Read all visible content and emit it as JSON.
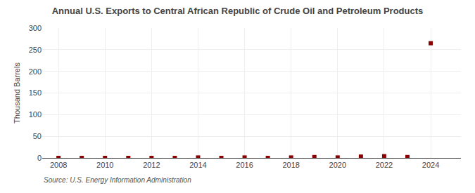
{
  "chart_data": {
    "type": "scatter",
    "title": "Annual U.S. Exports to Central African Republic of Crude Oil and Petroleum Products",
    "ylabel": "Thousand Barrels",
    "source": "Source: U.S. Energy Information Administration",
    "x": [
      2008,
      2009,
      2010,
      2011,
      2012,
      2013,
      2014,
      2015,
      2016,
      2017,
      2018,
      2019,
      2020,
      2021,
      2022,
      2023,
      2024
    ],
    "values": [
      0,
      0,
      0,
      0,
      0,
      0,
      1,
      0,
      1,
      0,
      1,
      2,
      1,
      3,
      4,
      2,
      265
    ],
    "color": "#8b0000",
    "marker": "square",
    "xlim": [
      2007.3,
      2025.3
    ],
    "ylim": [
      0,
      300
    ],
    "xticks": [
      2008,
      2010,
      2012,
      2014,
      2016,
      2018,
      2020,
      2022,
      2024
    ],
    "yticks": [
      0,
      50,
      100,
      150,
      200,
      250,
      300
    ],
    "grid": true
  }
}
